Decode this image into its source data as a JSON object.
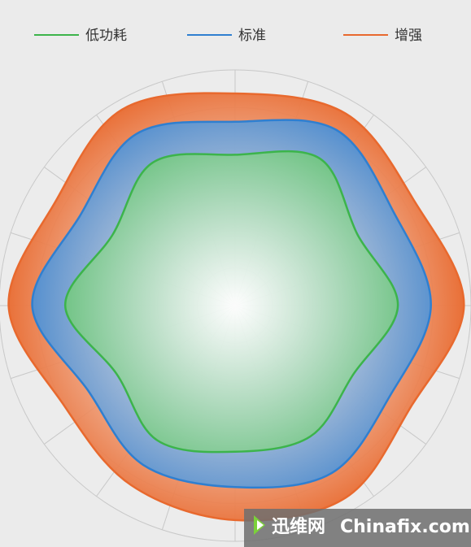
{
  "chart_data": {
    "type": "radar",
    "series": [
      {
        "name": "低功耗",
        "color": "#3cb44b",
        "values": [
          64,
          72,
          60,
          69,
          58,
          64,
          62,
          66,
          58,
          72,
          60,
          70
        ]
      },
      {
        "name": "标准",
        "color": "#2f7fd0",
        "values": [
          78,
          86,
          78,
          83,
          76,
          82,
          77,
          78,
          72,
          86,
          76,
          84
        ]
      },
      {
        "name": "增强",
        "color": "#e8692e",
        "values": [
          90,
          94,
          88,
          97,
          86,
          94,
          91,
          88,
          84,
          96,
          88,
          96
        ]
      }
    ],
    "rlim": [
      0,
      100
    ],
    "rticks": [
      16,
      33,
      50,
      67,
      84,
      100
    ],
    "grid": true
  },
  "watermark": {
    "brand": "迅维网",
    "site": "Chinafix.com"
  }
}
